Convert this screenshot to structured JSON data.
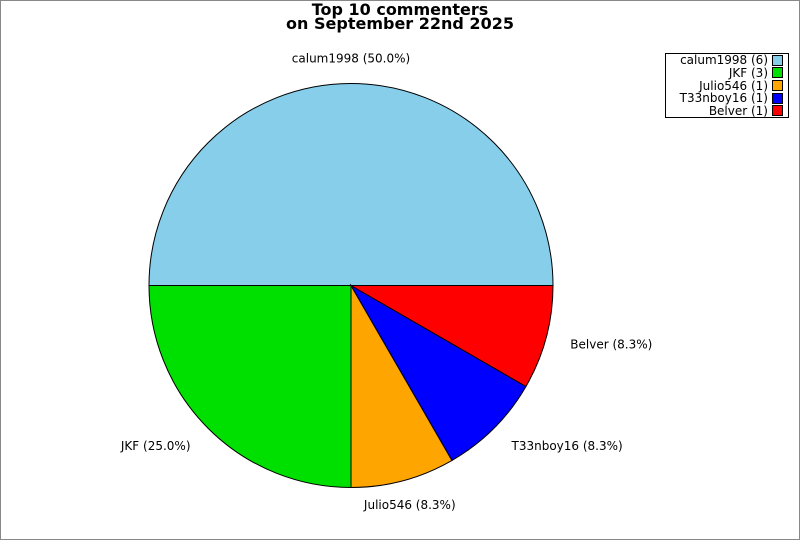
{
  "title": {
    "line1": "Top 10 commenters",
    "line2": "on September 22nd 2025"
  },
  "legend": {
    "position": "top-right",
    "items": [
      {
        "label": "calum1998",
        "text": "calum1998 (6)",
        "color": "#87CEEB"
      },
      {
        "label": "JKF",
        "text": "JKF (3)",
        "color": "#00E000"
      },
      {
        "label": "Julio546",
        "text": "Julio546 (1)",
        "color": "#FFA500"
      },
      {
        "label": "T33nboy16",
        "text": "T33nboy16 (1)",
        "color": "#0000FF"
      },
      {
        "label": "Belver",
        "text": "Belver (1)",
        "color": "#FF0000"
      }
    ]
  },
  "chart_data": {
    "type": "pie",
    "title": "Top 10 commenters on September 22nd 2025",
    "start_angle_deg": 0,
    "direction": "counterclockwise",
    "total_comments": 12,
    "edge_color": "#000000",
    "background": "#FFFFFF",
    "slices": [
      {
        "label": "calum1998",
        "count": 6,
        "percent": 50.0,
        "color": "#87CEEB",
        "label_text": "calum1998 (50.0%)",
        "legend_text": "calum1998 (6)"
      },
      {
        "label": "JKF",
        "count": 3,
        "percent": 25.0,
        "color": "#00E000",
        "label_text": "JKF (25.0%)",
        "legend_text": "JKF (3)"
      },
      {
        "label": "Julio546",
        "count": 1,
        "percent": 8.3,
        "color": "#FFA500",
        "label_text": "Julio546 (8.3%)",
        "legend_text": "Julio546 (1)"
      },
      {
        "label": "T33nboy16",
        "count": 1,
        "percent": 8.3,
        "color": "#0000FF",
        "label_text": "T33nboy16 (8.3%)",
        "legend_text": "T33nboy16 (1)"
      },
      {
        "label": "Belver",
        "count": 1,
        "percent": 8.3,
        "color": "#FF0000",
        "label_text": "Belver (8.3%)",
        "legend_text": "Belver (1)"
      }
    ]
  }
}
